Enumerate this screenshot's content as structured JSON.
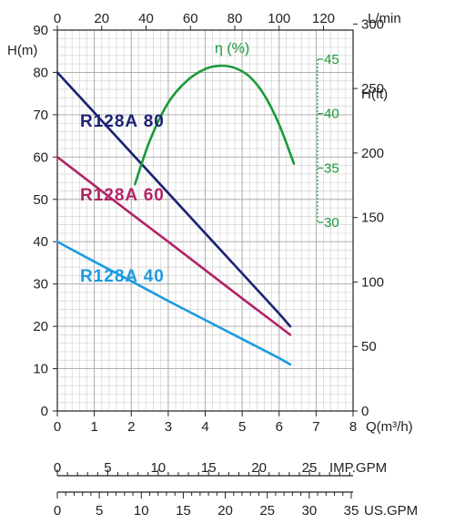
{
  "chart_data": {
    "type": "line",
    "axes": {
      "q_m3h": {
        "label": "Q(m³/h)",
        "range": [
          0,
          8
        ],
        "ticks": [
          0,
          1,
          2,
          3,
          4,
          5,
          6,
          7,
          8
        ]
      },
      "q_lmin": {
        "label": "L/min",
        "range": [
          0,
          133.33
        ],
        "ticks": [
          0,
          20,
          40,
          60,
          80,
          100,
          120
        ]
      },
      "head_m": {
        "label": "H(m)",
        "range": [
          0,
          90
        ],
        "ticks": [
          0,
          10,
          20,
          30,
          40,
          50,
          60,
          70,
          80,
          90
        ]
      },
      "head_ft": {
        "label": "H(ft)",
        "range": [
          0,
          295.3
        ],
        "ticks": [
          0,
          50,
          100,
          150,
          200,
          250,
          300
        ]
      },
      "efficiency": {
        "label": "η (%)",
        "range": [
          30,
          45
        ],
        "ticks": [
          30,
          35,
          40,
          45
        ]
      },
      "imp_gpm": {
        "label": "IMP.GPM",
        "range": [
          0,
          29.33
        ],
        "ticks": [
          0,
          5,
          10,
          15,
          20,
          25
        ]
      },
      "us_gpm": {
        "label": "US.GPM",
        "range": [
          0,
          35.22
        ],
        "ticks": [
          0,
          5,
          10,
          15,
          20,
          25,
          30,
          35
        ]
      }
    },
    "grid": true,
    "series": [
      {
        "name": "R128A 80",
        "color": "#1b2273",
        "x": [
          0,
          1,
          2,
          3,
          4,
          5,
          6,
          6.3
        ],
        "y": [
          80,
          70.5,
          61,
          51.5,
          42,
          32.5,
          23,
          20
        ]
      },
      {
        "name": "R128A 60",
        "color": "#b12466",
        "x": [
          0,
          1,
          2,
          3,
          4,
          5,
          6,
          6.3
        ],
        "y": [
          60,
          53.3,
          46.6,
          40,
          33.3,
          26.6,
          20,
          18
        ]
      },
      {
        "name": "R128A 40",
        "color": "#1b9be0",
        "x": [
          0,
          1,
          2,
          3,
          4,
          5,
          6,
          6.3
        ],
        "y": [
          40,
          35.3,
          30.7,
          26,
          21.5,
          17,
          12.5,
          11
        ]
      },
      {
        "name": "η (%)",
        "color": "#1a9a3a",
        "axis": "efficiency",
        "x": [
          2.1,
          2.5,
          3.0,
          3.5,
          4.0,
          4.4,
          4.8,
          5.2,
          5.6,
          6.0,
          6.4
        ],
        "y": [
          33.5,
          37.5,
          41.0,
          43.0,
          44.1,
          44.4,
          44.2,
          43.4,
          41.7,
          39.0,
          35.4
        ]
      }
    ]
  }
}
